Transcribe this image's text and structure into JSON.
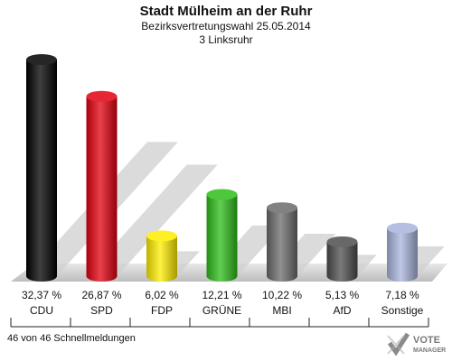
{
  "header": {
    "title": "Stadt Mülheim an der Ruhr",
    "subtitle": "Bezirksvertretungswahl 25.05.2014",
    "district": "3 Linksruhr"
  },
  "footer": {
    "status": "46 von 46 Schnellmeldungen"
  },
  "logo": {
    "line1": "VOTE",
    "line2": "MANAGER"
  },
  "chart_data": {
    "type": "bar",
    "categories": [
      "CDU",
      "SPD",
      "FDP",
      "GRÜNE",
      "MBI",
      "AfD",
      "Sonstige"
    ],
    "values": [
      32.37,
      26.87,
      6.02,
      12.21,
      10.22,
      5.13,
      7.18
    ],
    "value_labels": [
      "32,37 %",
      "26,87 %",
      "6,02 %",
      "12,21 %",
      "10,22 %",
      "5,13 %",
      "7,18 %"
    ],
    "colors": [
      "#000000",
      "#e3000f",
      "#ffed00",
      "#2ebd1a",
      "#6b6b6b",
      "#4d4d4d",
      "#a8b4dc"
    ],
    "ylim": [
      0,
      34
    ]
  }
}
